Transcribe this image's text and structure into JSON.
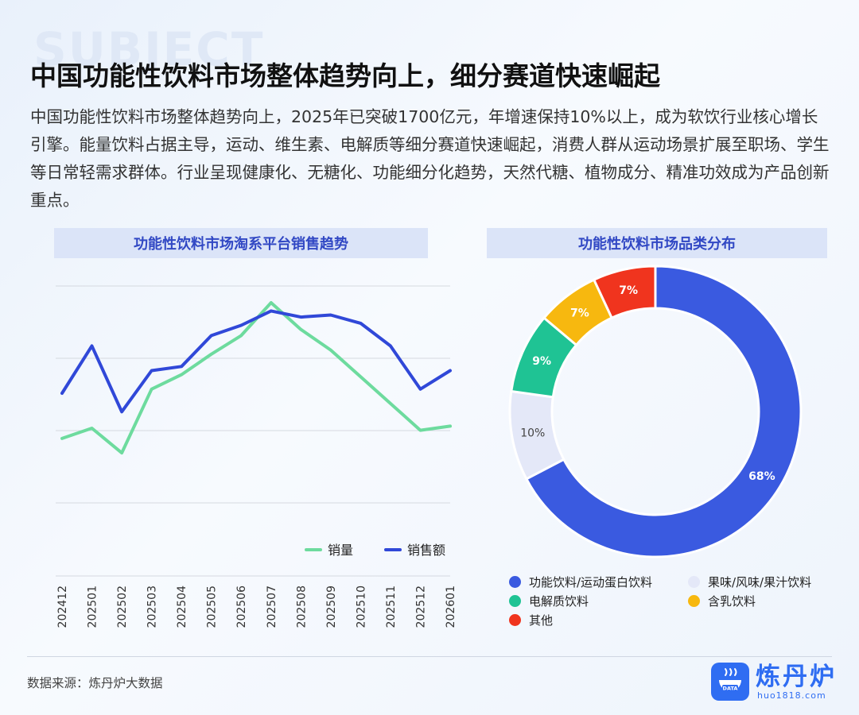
{
  "background_word": "SUBJECT",
  "title": "中国功能性饮料市场整体趋势向上，细分赛道快速崛起",
  "body": "中国功能性饮料市场整体趋势向上，2025年已突破1700亿元，年增速保持10%以上，成为软饮行业核心增长引擎。能量饮料占据主导，运动、维生素、电解质等细分赛道快速崛起，消费人群从运动场景扩展至职场、学生等日常轻需求群体。行业呈现健康化、无糖化、功能细分化趋势，天然代糖、植物成分、精准功效成为产品创新重点。",
  "source": "数据来源：炼丹炉大数据",
  "brand": {
    "name": "炼丹炉",
    "url": "huo1818.com",
    "badge": "DATA",
    "color": "#2f6df2"
  },
  "chart_data": [
    {
      "type": "line",
      "title": "功能性饮料市场淘系平台销售趋势",
      "x": [
        "202412",
        "202501",
        "202502",
        "202503",
        "202504",
        "202505",
        "202506",
        "202507",
        "202508",
        "202509",
        "202510",
        "202511",
        "202512",
        "202601"
      ],
      "ylim": [
        0,
        100
      ],
      "grid": true,
      "legend_position": "bottom-right",
      "series": [
        {
          "name": "销量",
          "color": "#6ddb9e",
          "values": [
            34,
            39,
            27,
            58,
            65,
            75,
            84,
            100,
            87,
            77,
            64,
            51,
            38,
            40
          ]
        },
        {
          "name": "销售额",
          "color": "#3048d8",
          "values": [
            56,
            79,
            47,
            67,
            69,
            84,
            89,
            96,
            93,
            94,
            90,
            79,
            58,
            67
          ]
        }
      ]
    },
    {
      "type": "pie",
      "title": "功能性饮料市场品类分布",
      "donut": true,
      "slices": [
        {
          "label": "功能饮料/运动蛋白饮料",
          "value": 68,
          "display": "68%",
          "color": "#3a5ae0",
          "text_color": "#ffffff"
        },
        {
          "label": "果味/风味/果汁饮料",
          "value": 10,
          "display": "10%",
          "color": "#e4e8f8",
          "text_color": "#444444"
        },
        {
          "label": "电解质饮料",
          "value": 9,
          "display": "9%",
          "color": "#1fc394",
          "text_color": "#ffffff"
        },
        {
          "label": "含乳饮料",
          "value": 7,
          "display": "7%",
          "color": "#f7b80f",
          "text_color": "#ffffff"
        },
        {
          "label": "其他",
          "value": 7,
          "display": "7%",
          "color": "#f0341e",
          "text_color": "#ffffff"
        }
      ]
    }
  ]
}
